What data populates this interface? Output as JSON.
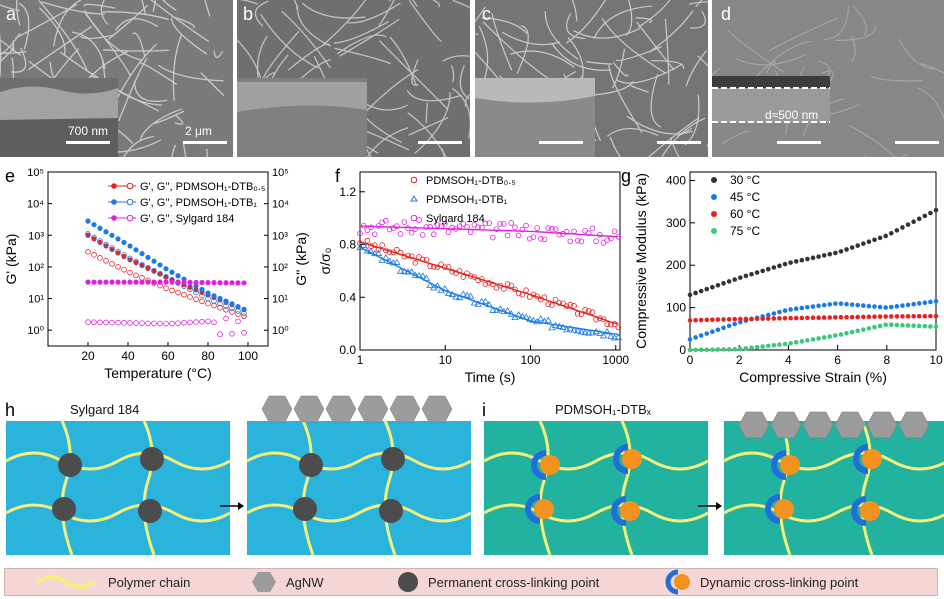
{
  "panels": {
    "a": {
      "label": "a",
      "scale_left": "700 nm",
      "scale_right": "2 μm"
    },
    "b": {
      "label": "b"
    },
    "c": {
      "label": "c"
    },
    "d": {
      "label": "d",
      "thickness": "d≈500 nm"
    },
    "e": {
      "label": "e"
    },
    "f": {
      "label": "f"
    },
    "g": {
      "label": "g"
    },
    "h": {
      "label": "h",
      "title": "Sylgard 184"
    },
    "i": {
      "label": "i",
      "title": "PDMSOH₁-DTBₓ"
    }
  },
  "chart_data": [
    {
      "id": "e",
      "type": "line",
      "xlabel": "Temperature (°C)",
      "ylabel_left": "G' (kPa)",
      "ylabel_right": "G'' (kPa)",
      "xlim": [
        0,
        110
      ],
      "ylim_log10": [
        -0.5,
        5
      ],
      "x_ticks": [
        "20",
        "40",
        "60",
        "80",
        "100"
      ],
      "y_ticks": [
        "10⁰",
        "10¹",
        "10²",
        "10³",
        "10⁴",
        "10⁵"
      ],
      "log_y": true,
      "legend_position": "top-right",
      "series": [
        {
          "name": "G', G'', PDMSOH₁-DTB₀.₅",
          "color": "#e8201f",
          "x": [
            20,
            40,
            60,
            80,
            100
          ],
          "y_storage": [
            1000,
            180,
            45,
            13,
            4
          ],
          "y_loss": [
            300,
            70,
            20,
            7,
            2.5
          ]
        },
        {
          "name": "G', G'', PDMSOH₁-DTB₁",
          "color": "#1a7ae8",
          "x": [
            20,
            40,
            60,
            80,
            100
          ],
          "y_storage": [
            2800,
            500,
            80,
            15,
            4
          ],
          "y_loss": [
            1100,
            200,
            45,
            10,
            3
          ]
        },
        {
          "name": "G', G'', Sylgard 184",
          "color": "#e020e0",
          "x": [
            20,
            40,
            60,
            80,
            100
          ],
          "y_storage": [
            33,
            33,
            33,
            32,
            31
          ],
          "y_loss": [
            1.8,
            1.7,
            1.6,
            1.9,
            1.2
          ]
        }
      ]
    },
    {
      "id": "f",
      "type": "scatter",
      "xlabel": "Time (s)",
      "ylabel": "σ/σ₀",
      "log_x": true,
      "xlim_log10": [
        0,
        3.05
      ],
      "ylim": [
        0,
        1.35
      ],
      "x_ticks": [
        "1",
        "10",
        "100",
        "1000"
      ],
      "y_ticks": [
        "0.0",
        "0.4",
        "0.8",
        "1.2"
      ],
      "legend_position": "top-right",
      "series": [
        {
          "name": "PDMSOH₁-DTB₀.₅",
          "color": "#e8201f",
          "x": [
            1,
            10,
            100,
            1000
          ],
          "y": [
            0.82,
            0.62,
            0.42,
            0.2
          ]
        },
        {
          "name": "PDMSOH₁-DTB₁",
          "color": "#1a7ae8",
          "x": [
            1,
            10,
            100,
            1000
          ],
          "y": [
            0.78,
            0.45,
            0.22,
            0.12
          ]
        },
        {
          "name": "Sylgard 184",
          "color": "#e020e0",
          "x": [
            1,
            10,
            100,
            1000
          ],
          "y": [
            0.94,
            0.92,
            0.9,
            0.86
          ]
        }
      ]
    },
    {
      "id": "g",
      "type": "scatter",
      "xlabel": "Compressive Strain (%)",
      "ylabel": "Compressive Modulus (kPa)",
      "xlim": [
        0,
        10
      ],
      "ylim": [
        0,
        420
      ],
      "x_ticks": [
        "0",
        "2",
        "4",
        "6",
        "8",
        "10"
      ],
      "y_ticks": [
        "0",
        "100",
        "200",
        "300",
        "400"
      ],
      "legend_position": "top-left",
      "series": [
        {
          "name": "30 °C",
          "color": "#333333",
          "x": [
            0,
            2,
            4,
            6,
            8,
            10
          ],
          "y": [
            130,
            170,
            205,
            230,
            270,
            330
          ]
        },
        {
          "name": "45 °C",
          "color": "#1a7ae8",
          "x": [
            0,
            2,
            4,
            6,
            8,
            10
          ],
          "y": [
            25,
            65,
            95,
            110,
            100,
            115
          ]
        },
        {
          "name": "60 °C",
          "color": "#e8201f",
          "x": [
            0,
            2,
            4,
            6,
            8,
            10
          ],
          "y": [
            70,
            73,
            75,
            77,
            79,
            80
          ]
        },
        {
          "name": "75 °C",
          "color": "#3cc878",
          "x": [
            0,
            2,
            4,
            6,
            8,
            10
          ],
          "y": [
            0,
            2,
            15,
            35,
            60,
            55
          ]
        }
      ]
    }
  ],
  "legend": {
    "polymer_chain": "Polymer chain",
    "agnw": "AgNW",
    "permanent": "Permanent cross-linking point",
    "dynamic": "Dynamic cross-linking point"
  },
  "colors": {
    "sylgard_bg": "#2ab4dc",
    "dtb_bg": "#22b3a0",
    "chain": "#f4f07a",
    "permanent_node": "#4c4c4c",
    "dynamic_orange": "#f3921e",
    "dynamic_blue": "#1f6fd8",
    "agnw": "#9c9c9c"
  }
}
